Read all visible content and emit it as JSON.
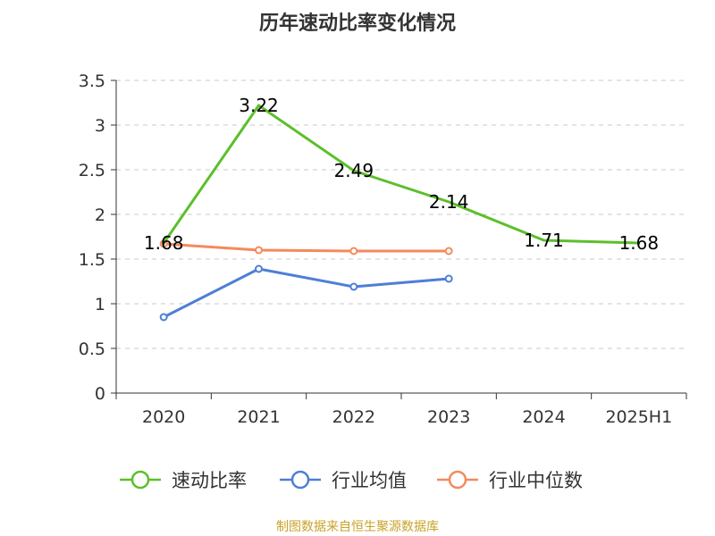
{
  "chart_data": {
    "type": "line",
    "title": "历年速动比率变化情况",
    "categories": [
      "2020",
      "2021",
      "2022",
      "2023",
      "2024",
      "2025H1"
    ],
    "ylim": [
      0,
      3.5
    ],
    "yticks": [
      "0",
      "0.5",
      "1",
      "1.5",
      "2",
      "2.5",
      "3",
      "3.5"
    ],
    "grid": true,
    "legend_position": "bottom",
    "series": [
      {
        "name": "速动比率",
        "color": "#5cbf2a",
        "values": [
          1.68,
          3.22,
          2.49,
          2.14,
          1.71,
          1.68
        ],
        "labels": [
          "1.68",
          "3.22",
          "2.49",
          "2.14",
          "1.71",
          "1.68"
        ],
        "show_labels": true,
        "show_markers": false
      },
      {
        "name": "行业均值",
        "color": "#4e7fd6",
        "values": [
          0.85,
          1.39,
          1.19,
          1.28,
          null,
          null
        ],
        "show_labels": false,
        "show_markers": true
      },
      {
        "name": "行业中位数",
        "color": "#f48a5c",
        "values": [
          1.67,
          1.6,
          1.59,
          1.59,
          null,
          null
        ],
        "show_labels": false,
        "show_markers": true
      }
    ]
  },
  "footer": {
    "source": "制图数据来自恒生聚源数据库"
  }
}
